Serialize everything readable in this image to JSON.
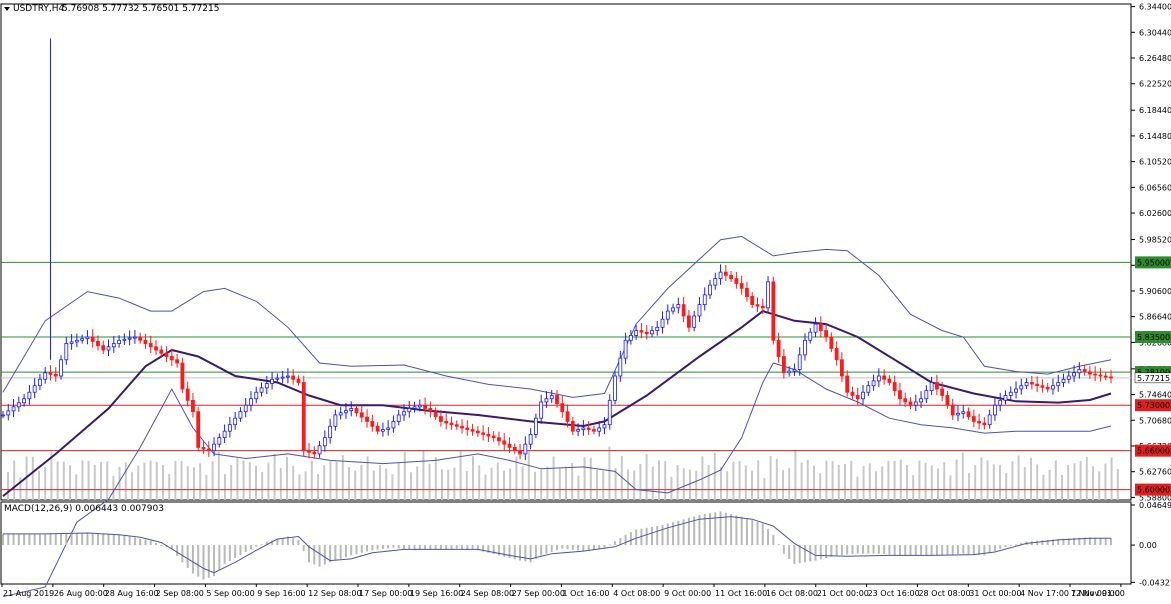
{
  "header": {
    "symbol_timeframe": "USDTRY,H4",
    "ohlc": "5.76908 5.77732 5.76501 5.77215",
    "dropdown_icon": "triangle-down-icon"
  },
  "macd_label": "MACD(12,26,9) 0.006443 0.007903",
  "chart_data": [
    {
      "type": "candlestick",
      "symbol": "USDTRY",
      "timeframe": "H4",
      "price_axis_ticks": [
        "6.34400",
        "6.30440",
        "6.26480",
        "6.22520",
        "6.18440",
        "6.14480",
        "6.10520",
        "6.06560",
        "6.02600",
        "5.98520",
        "5.94560",
        "5.90600",
        "5.86640",
        "5.82680",
        "5.78600",
        "5.74640",
        "5.70680",
        "5.66720",
        "5.62760",
        "5.58800"
      ],
      "time_axis_labels": [
        "21 Aug 2019",
        "26 Aug 00:00",
        "28 Aug 16:00",
        "2 Sep 08:00",
        "5 Sep 00:00",
        "9 Sep 16:00",
        "12 Sep 08:00",
        "17 Sep 00:00",
        "19 Sep 16:00",
        "24 Sep 08:00",
        "27 Sep 00:00",
        "1 Oct 16:00",
        "4 Oct 08:00",
        "9 Oct 00:00",
        "11 Oct 16:00",
        "16 Oct 08:00",
        "21 Oct 00:00",
        "23 Oct 16:00",
        "28 Oct 08:00",
        "31 Oct 00:00",
        "4 Nov 17:00",
        "7 Nov 09:00",
        "12 Nov 01:00"
      ],
      "ylim": [
        5.584,
        6.348
      ],
      "current_price": "5.77215",
      "horizontal_levels": [
        {
          "label": "5.95000",
          "value": 5.95,
          "color": "#2e8b2e"
        },
        {
          "label": "5.83500",
          "value": 5.835,
          "color": "#2e8b2e"
        },
        {
          "label": "5.78100",
          "value": 5.781,
          "color": "#2e8b2e"
        },
        {
          "label": "5.73000",
          "value": 5.73,
          "color": "#e02020"
        },
        {
          "label": "5.66000",
          "value": 5.66,
          "color": "#e02020"
        },
        {
          "label": "5.60000",
          "value": 5.6,
          "color": "#e02020"
        }
      ],
      "spike": {
        "x_index": 9,
        "high": 6.295
      },
      "close_path": [
        [
          0,
          5.715
        ],
        [
          4,
          5.74
        ],
        [
          8,
          5.78
        ],
        [
          10,
          5.775
        ],
        [
          12,
          5.825
        ],
        [
          16,
          5.835
        ],
        [
          19,
          5.815
        ],
        [
          22,
          5.83
        ],
        [
          25,
          5.835
        ],
        [
          27,
          5.825
        ],
        [
          30,
          5.81
        ],
        [
          33,
          5.795
        ],
        [
          34,
          5.755
        ],
        [
          36,
          5.72
        ],
        [
          37,
          5.665
        ],
        [
          39,
          5.66
        ],
        [
          42,
          5.69
        ],
        [
          45,
          5.72
        ],
        [
          48,
          5.75
        ],
        [
          51,
          5.77
        ],
        [
          54,
          5.775
        ],
        [
          56,
          5.765
        ],
        [
          57,
          5.66
        ],
        [
          59,
          5.655
        ],
        [
          61,
          5.68
        ],
        [
          63,
          5.715
        ],
        [
          66,
          5.725
        ],
        [
          69,
          5.705
        ],
        [
          71,
          5.69
        ],
        [
          73,
          5.695
        ],
        [
          75,
          5.715
        ],
        [
          77,
          5.725
        ],
        [
          79,
          5.73
        ],
        [
          81,
          5.72
        ],
        [
          83,
          5.705
        ],
        [
          85,
          5.7
        ],
        [
          87,
          5.695
        ],
        [
          89,
          5.69
        ],
        [
          91,
          5.685
        ],
        [
          93,
          5.68
        ],
        [
          95,
          5.67
        ],
        [
          97,
          5.66
        ],
        [
          98,
          5.655
        ],
        [
          100,
          5.685
        ],
        [
          102,
          5.735
        ],
        [
          104,
          5.745
        ],
        [
          106,
          5.72
        ],
        [
          108,
          5.69
        ],
        [
          110,
          5.695
        ],
        [
          112,
          5.69
        ],
        [
          114,
          5.7
        ],
        [
          116,
          5.775
        ],
        [
          118,
          5.83
        ],
        [
          120,
          5.845
        ],
        [
          122,
          5.84
        ],
        [
          124,
          5.85
        ],
        [
          126,
          5.875
        ],
        [
          128,
          5.885
        ],
        [
          130,
          5.85
        ],
        [
          132,
          5.885
        ],
        [
          134,
          5.915
        ],
        [
          136,
          5.935
        ],
        [
          138,
          5.925
        ],
        [
          140,
          5.91
        ],
        [
          142,
          5.885
        ],
        [
          144,
          5.88
        ],
        [
          145,
          5.92
        ],
        [
          146,
          5.83
        ],
        [
          148,
          5.78
        ],
        [
          150,
          5.785
        ],
        [
          152,
          5.83
        ],
        [
          154,
          5.855
        ],
        [
          156,
          5.835
        ],
        [
          158,
          5.8
        ],
        [
          160,
          5.75
        ],
        [
          162,
          5.74
        ],
        [
          164,
          5.76
        ],
        [
          166,
          5.775
        ],
        [
          168,
          5.765
        ],
        [
          170,
          5.74
        ],
        [
          172,
          5.73
        ],
        [
          174,
          5.74
        ],
        [
          176,
          5.765
        ],
        [
          178,
          5.745
        ],
        [
          180,
          5.715
        ],
        [
          182,
          5.72
        ],
        [
          184,
          5.705
        ],
        [
          186,
          5.7
        ],
        [
          188,
          5.73
        ],
        [
          190,
          5.745
        ],
        [
          192,
          5.755
        ],
        [
          194,
          5.765
        ],
        [
          196,
          5.76
        ],
        [
          198,
          5.755
        ],
        [
          200,
          5.765
        ],
        [
          202,
          5.775
        ],
        [
          204,
          5.785
        ],
        [
          206,
          5.778
        ],
        [
          208,
          5.775
        ],
        [
          210,
          5.772
        ]
      ],
      "middle_band": [
        [
          0,
          5.59
        ],
        [
          10,
          5.655
        ],
        [
          20,
          5.725
        ],
        [
          27,
          5.79
        ],
        [
          32,
          5.815
        ],
        [
          37,
          5.805
        ],
        [
          44,
          5.775
        ],
        [
          52,
          5.765
        ],
        [
          58,
          5.745
        ],
        [
          64,
          5.73
        ],
        [
          72,
          5.73
        ],
        [
          80,
          5.722
        ],
        [
          90,
          5.715
        ],
        [
          100,
          5.705
        ],
        [
          110,
          5.698
        ],
        [
          114,
          5.705
        ],
        [
          122,
          5.745
        ],
        [
          132,
          5.805
        ],
        [
          140,
          5.85
        ],
        [
          144,
          5.875
        ],
        [
          150,
          5.86
        ],
        [
          156,
          5.855
        ],
        [
          162,
          5.835
        ],
        [
          168,
          5.805
        ],
        [
          176,
          5.765
        ],
        [
          184,
          5.748
        ],
        [
          192,
          5.736
        ],
        [
          200,
          5.734
        ],
        [
          206,
          5.738
        ],
        [
          210,
          5.748
        ]
      ],
      "upper_band": [
        [
          0,
          5.75
        ],
        [
          8,
          5.86
        ],
        [
          16,
          5.905
        ],
        [
          22,
          5.895
        ],
        [
          28,
          5.875
        ],
        [
          32,
          5.875
        ],
        [
          38,
          5.905
        ],
        [
          42,
          5.91
        ],
        [
          48,
          5.89
        ],
        [
          54,
          5.85
        ],
        [
          60,
          5.795
        ],
        [
          66,
          5.79
        ],
        [
          76,
          5.792
        ],
        [
          84,
          5.775
        ],
        [
          92,
          5.762
        ],
        [
          100,
          5.755
        ],
        [
          108,
          5.742
        ],
        [
          114,
          5.748
        ],
        [
          120,
          5.855
        ],
        [
          126,
          5.91
        ],
        [
          132,
          5.955
        ],
        [
          136,
          5.985
        ],
        [
          140,
          5.99
        ],
        [
          146,
          5.96
        ],
        [
          150,
          5.965
        ],
        [
          156,
          5.97
        ],
        [
          160,
          5.968
        ],
        [
          166,
          5.93
        ],
        [
          172,
          5.87
        ],
        [
          178,
          5.845
        ],
        [
          182,
          5.835
        ],
        [
          186,
          5.79
        ],
        [
          192,
          5.782
        ],
        [
          198,
          5.778
        ],
        [
          204,
          5.79
        ],
        [
          210,
          5.8
        ]
      ],
      "lower_band": [
        [
          0,
          5.435
        ],
        [
          8,
          5.45
        ],
        [
          14,
          5.55
        ],
        [
          20,
          5.585
        ],
        [
          26,
          5.665
        ],
        [
          32,
          5.755
        ],
        [
          36,
          5.695
        ],
        [
          40,
          5.655
        ],
        [
          46,
          5.648
        ],
        [
          54,
          5.655
        ],
        [
          62,
          5.645
        ],
        [
          72,
          5.64
        ],
        [
          82,
          5.645
        ],
        [
          90,
          5.655
        ],
        [
          96,
          5.645
        ],
        [
          102,
          5.632
        ],
        [
          110,
          5.635
        ],
        [
          116,
          5.628
        ],
        [
          120,
          5.6
        ],
        [
          126,
          5.595
        ],
        [
          132,
          5.615
        ],
        [
          136,
          5.63
        ],
        [
          140,
          5.68
        ],
        [
          144,
          5.765
        ],
        [
          146,
          5.795
        ],
        [
          150,
          5.785
        ],
        [
          156,
          5.755
        ],
        [
          162,
          5.735
        ],
        [
          168,
          5.71
        ],
        [
          174,
          5.7
        ],
        [
          180,
          5.695
        ],
        [
          186,
          5.687
        ],
        [
          192,
          5.69
        ],
        [
          200,
          5.69
        ],
        [
          206,
          5.69
        ],
        [
          210,
          5.698
        ]
      ],
      "volume_relative": [
        0.5,
        0.6,
        0.3,
        0.7,
        0.8,
        0.4,
        0.5,
        0.9,
        0.6,
        0.7,
        0.5,
        0.4,
        0.6,
        0.8,
        0.5,
        0.7,
        0.6,
        0.3,
        0.5,
        0.6,
        0.4,
        0.5,
        0.7,
        0.6,
        0.8,
        0.5,
        0.4,
        0.6,
        0.7,
        0.5
      ]
    },
    {
      "type": "macd",
      "params": "12,26,9",
      "main": "0.006443",
      "signal": "0.007903",
      "ylim": [
        -0.04512,
        0.04995
      ],
      "axis_ticks": [
        "0.046499",
        "0.00",
        "-0.043212"
      ],
      "histogram": [
        [
          0,
          0.013
        ],
        [
          4,
          0.013
        ],
        [
          8,
          0.013
        ],
        [
          12,
          0.014
        ],
        [
          16,
          0.014
        ],
        [
          20,
          0.013
        ],
        [
          24,
          0.01
        ],
        [
          28,
          0.005
        ],
        [
          32,
          -0.005
        ],
        [
          34,
          -0.02
        ],
        [
          36,
          -0.033
        ],
        [
          38,
          -0.04
        ],
        [
          40,
          -0.036
        ],
        [
          42,
          -0.022
        ],
        [
          46,
          -0.008
        ],
        [
          50,
          0.004
        ],
        [
          54,
          0.01
        ],
        [
          56,
          0.006
        ],
        [
          58,
          -0.02
        ],
        [
          60,
          -0.025
        ],
        [
          62,
          -0.02
        ],
        [
          66,
          -0.012
        ],
        [
          70,
          -0.006
        ],
        [
          74,
          -0.003
        ],
        [
          78,
          -0.006
        ],
        [
          82,
          -0.005
        ],
        [
          86,
          -0.004
        ],
        [
          90,
          -0.006
        ],
        [
          94,
          -0.012
        ],
        [
          98,
          -0.018
        ],
        [
          100,
          -0.02
        ],
        [
          102,
          -0.012
        ],
        [
          106,
          -0.004
        ],
        [
          110,
          -0.007
        ],
        [
          114,
          -0.003
        ],
        [
          118,
          0.012
        ],
        [
          120,
          0.018
        ],
        [
          124,
          0.022
        ],
        [
          128,
          0.028
        ],
        [
          132,
          0.035
        ],
        [
          136,
          0.039
        ],
        [
          140,
          0.033
        ],
        [
          144,
          0.025
        ],
        [
          146,
          0.012
        ],
        [
          148,
          -0.01
        ],
        [
          150,
          -0.022
        ],
        [
          154,
          -0.018
        ],
        [
          158,
          -0.012
        ],
        [
          162,
          -0.01
        ],
        [
          166,
          -0.01
        ],
        [
          170,
          -0.012
        ],
        [
          174,
          -0.012
        ],
        [
          178,
          -0.012
        ],
        [
          182,
          -0.01
        ],
        [
          186,
          -0.012
        ],
        [
          190,
          -0.002
        ],
        [
          194,
          0.004
        ],
        [
          198,
          0.006
        ],
        [
          202,
          0.008
        ],
        [
          206,
          0.009
        ],
        [
          210,
          0.008
        ]
      ],
      "signal_line": [
        [
          0,
          0.013
        ],
        [
          8,
          0.013
        ],
        [
          16,
          0.014
        ],
        [
          22,
          0.012
        ],
        [
          26,
          0.009
        ],
        [
          30,
          0.003
        ],
        [
          34,
          -0.012
        ],
        [
          38,
          -0.027
        ],
        [
          40,
          -0.032
        ],
        [
          44,
          -0.02
        ],
        [
          48,
          -0.006
        ],
        [
          52,
          0.007
        ],
        [
          56,
          0.01
        ],
        [
          58,
          -0.002
        ],
        [
          62,
          -0.018
        ],
        [
          66,
          -0.016
        ],
        [
          70,
          -0.009
        ],
        [
          76,
          -0.005
        ],
        [
          82,
          -0.005
        ],
        [
          90,
          -0.005
        ],
        [
          96,
          -0.012
        ],
        [
          100,
          -0.016
        ],
        [
          104,
          -0.01
        ],
        [
          110,
          -0.007
        ],
        [
          116,
          -0.002
        ],
        [
          120,
          0.008
        ],
        [
          126,
          0.02
        ],
        [
          132,
          0.03
        ],
        [
          138,
          0.033
        ],
        [
          142,
          0.03
        ],
        [
          146,
          0.022
        ],
        [
          150,
          0.002
        ],
        [
          154,
          -0.012
        ],
        [
          160,
          -0.013
        ],
        [
          168,
          -0.012
        ],
        [
          176,
          -0.012
        ],
        [
          184,
          -0.011
        ],
        [
          188,
          -0.008
        ],
        [
          194,
          0.002
        ],
        [
          200,
          0.006
        ],
        [
          206,
          0.008
        ],
        [
          210,
          0.008
        ]
      ]
    }
  ]
}
